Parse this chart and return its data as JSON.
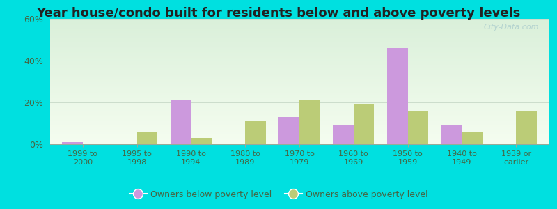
{
  "title": "Year house/condo built for residents below and above poverty levels",
  "categories": [
    "1999 to\n2000",
    "1995 to\n1998",
    "1990 to\n1994",
    "1980 to\n1989",
    "1970 to\n1979",
    "1960 to\n1969",
    "1950 to\n1959",
    "1940 to\n1949",
    "1939 or\nearlier"
  ],
  "below_poverty": [
    1.0,
    0.0,
    21.0,
    0.0,
    13.0,
    9.0,
    46.0,
    9.0,
    0.0
  ],
  "above_poverty": [
    0.5,
    6.0,
    3.0,
    11.0,
    21.0,
    19.0,
    16.0,
    6.0,
    16.0
  ],
  "below_color": "#cc99dd",
  "above_color": "#bbcc77",
  "ylim": [
    0,
    60
  ],
  "yticks": [
    0,
    20,
    40,
    60
  ],
  "ytick_labels": [
    "0%",
    "20%",
    "40%",
    "60%"
  ],
  "legend_below": "Owners below poverty level",
  "legend_above": "Owners above poverty level",
  "plot_bg_top": "#e0f0e0",
  "plot_bg_bottom": "#f0faf0",
  "outer_bg": "#00e0e0",
  "title_fontsize": 13,
  "bar_width": 0.38,
  "tick_label_color": "#446644",
  "title_color": "#222222",
  "watermark": "City-Data.com"
}
